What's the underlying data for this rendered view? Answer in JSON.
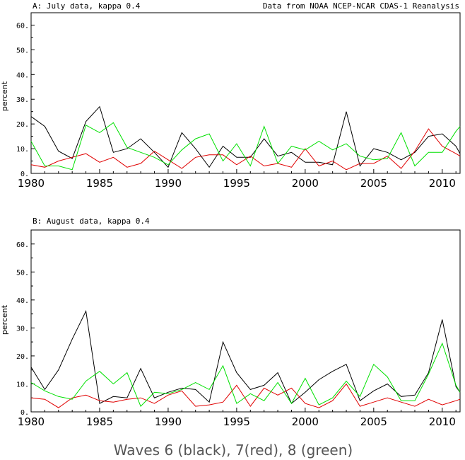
{
  "caption": "Waves 6 (black), 7(red), 8 (green)",
  "series_colors": {
    "black": "#000000",
    "red": "#e00000",
    "green": "#00e000"
  },
  "chart_data": [
    {
      "type": "line",
      "title": "A: July data, kappa 0.4",
      "subtitle": "Data from NOAA NCEP-NCAR CDAS-1 Reanalysis",
      "xlabel": "",
      "ylabel": "percent",
      "xlim": [
        1980,
        2011.3
      ],
      "ylim": [
        0,
        65
      ],
      "xticks": [
        "1980",
        "1985",
        "1990",
        "1995",
        "2000",
        "2005",
        "2010"
      ],
      "yticks": [
        "0.",
        "10.",
        "20.",
        "30.",
        "40.",
        "50.",
        "60."
      ],
      "x": [
        1980,
        1981,
        1982,
        1983,
        1984,
        1985,
        1986,
        1987,
        1988,
        1989,
        1990,
        1991,
        1992,
        1993,
        1994,
        1995,
        1996,
        1997,
        1998,
        1999,
        2000,
        2001,
        2002,
        2003,
        2004,
        2005,
        2006,
        2007,
        2008,
        2009,
        2010,
        2011,
        2011.3
      ],
      "series": [
        {
          "name": "Wave 6",
          "color": "black",
          "values": [
            23,
            19,
            9,
            6,
            21,
            27,
            8.5,
            10,
            14,
            8.5,
            2.5,
            16.5,
            10,
            2.5,
            11,
            6.5,
            6.5,
            14,
            7,
            8.5,
            4.5,
            4.5,
            3.5,
            25,
            3,
            10,
            8.5,
            5.5,
            8.5,
            15,
            16,
            11,
            8
          ]
        },
        {
          "name": "Wave 7",
          "color": "red",
          "values": [
            3.5,
            2.5,
            5,
            6.5,
            8,
            4.5,
            6.5,
            2.5,
            4,
            9,
            5.5,
            2,
            6.5,
            7.5,
            7.5,
            3.5,
            7,
            3,
            4,
            2.5,
            10,
            3,
            5,
            1.5,
            4,
            4,
            7,
            2,
            9,
            18,
            11,
            8,
            7
          ]
        },
        {
          "name": "Wave 8",
          "color": "green",
          "values": [
            13,
            3,
            3,
            1.5,
            19.5,
            16.5,
            20.5,
            10.5,
            8.5,
            6.5,
            3.5,
            9.5,
            14,
            16,
            5,
            12,
            3,
            19,
            4,
            11,
            9.5,
            13,
            9.5,
            12,
            7,
            5.5,
            6,
            16.5,
            3,
            8.5,
            8.5,
            17,
            19
          ]
        }
      ]
    },
    {
      "type": "line",
      "title": "B: August data, kappa 0.4",
      "xlabel": "",
      "ylabel": "percent",
      "xlim": [
        1980,
        2011.3
      ],
      "ylim": [
        0,
        65
      ],
      "xticks": [
        "1980",
        "1985",
        "1990",
        "1995",
        "2000",
        "2005",
        "2010"
      ],
      "yticks": [
        "0.",
        "10.",
        "20.",
        "30.",
        "40.",
        "50.",
        "60."
      ],
      "x": [
        1980,
        1981,
        1982,
        1983,
        1984,
        1985,
        1986,
        1987,
        1988,
        1989,
        1990,
        1991,
        1992,
        1993,
        1994,
        1995,
        1996,
        1997,
        1998,
        1999,
        2000,
        2001,
        2002,
        2003,
        2004,
        2005,
        2006,
        2007,
        2008,
        2009,
        2010,
        2011,
        2011.3
      ],
      "series": [
        {
          "name": "Wave 6",
          "color": "black",
          "values": [
            16,
            8,
            15,
            26,
            36,
            3,
            5.5,
            5,
            15.5,
            5,
            7,
            8.5,
            8,
            3.5,
            25,
            14,
            8,
            9.5,
            14,
            3,
            7,
            11.5,
            14.5,
            17,
            4,
            7.5,
            10,
            5.5,
            6,
            14,
            33,
            9,
            7
          ]
        },
        {
          "name": "Wave 7",
          "color": "red",
          "values": [
            5,
            4.5,
            1.5,
            5,
            6,
            4,
            3.5,
            4.5,
            5,
            3,
            6,
            7.5,
            2,
            2.5,
            3.5,
            9.5,
            2,
            8.5,
            6,
            8.5,
            3,
            1.5,
            4,
            10,
            2,
            3.5,
            5,
            3.5,
            2,
            4.5,
            2.5,
            4,
            4.5
          ]
        },
        {
          "name": "Wave 8",
          "color": "green",
          "values": [
            10.5,
            7.5,
            5.5,
            4.5,
            11,
            14.5,
            10,
            14,
            2,
            7,
            6.5,
            8,
            10.5,
            8,
            16.5,
            3,
            6.5,
            4,
            10.5,
            3,
            12,
            2.5,
            5,
            11,
            5.5,
            17,
            12.5,
            4,
            4,
            13.5,
            24.5,
            9.5,
            7
          ]
        }
      ]
    }
  ]
}
